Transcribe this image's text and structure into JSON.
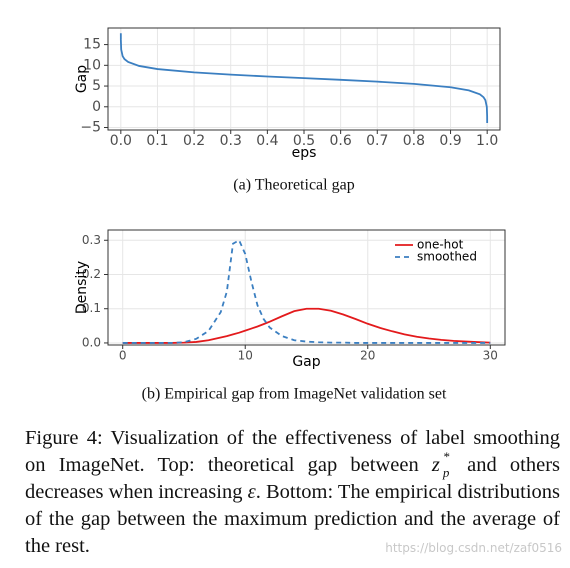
{
  "chart_data": [
    {
      "type": "line",
      "xlabel": "eps",
      "ylabel": "Gap",
      "caption": "(a) Theoretical gap",
      "x": [
        2e-05,
        0.0001,
        0.001,
        0.005,
        0.01,
        0.02,
        0.05,
        0.1,
        0.2,
        0.3,
        0.4,
        0.5,
        0.6,
        0.7,
        0.8,
        0.9,
        0.95,
        0.98,
        0.99,
        0.995,
        0.999,
        0.9999,
        0.99998
      ],
      "values": [
        17.73,
        16.12,
        13.81,
        12.2,
        11.5,
        10.8,
        9.85,
        9.1,
        8.29,
        7.75,
        7.31,
        6.91,
        6.5,
        6.06,
        5.52,
        4.71,
        3.96,
        3.01,
        2.31,
        1.61,
        0.0,
        -2.3,
        -3.91
      ],
      "color": "#3b7fc1",
      "xlim": [
        -0.035,
        1.035
      ],
      "xticks": [
        {
          "value": 0,
          "label": "0.0"
        },
        0.1,
        0.2,
        0.3,
        0.4,
        0.5,
        0.6,
        0.7,
        0.8,
        0.9,
        {
          "value": 1,
          "label": "1.0"
        }
      ],
      "ylim": [
        -5.6,
        19
      ],
      "yticks": [
        {
          "value": -5,
          "label": "−5"
        },
        0,
        5,
        10,
        15
      ],
      "grid": true
    },
    {
      "type": "line",
      "xlabel": "Gap",
      "ylabel": "Density",
      "caption": "(b) Empirical gap from ImageNet validation set",
      "x": [
        0,
        2,
        4,
        5,
        6,
        7,
        8,
        8.5,
        9,
        9.5,
        10,
        10.5,
        11,
        11.5,
        12,
        13,
        14,
        15,
        16,
        17,
        18,
        19,
        20,
        21,
        22,
        23,
        24,
        25,
        26,
        27,
        28,
        30
      ],
      "series": [
        {
          "name": "one-hot",
          "color": "#e31a1c",
          "dashed": false,
          "values": [
            0,
            0,
            0,
            0.001,
            0.003,
            0.008,
            0.016,
            0.02,
            0.025,
            0.03,
            0.036,
            0.042,
            0.048,
            0.055,
            0.062,
            0.078,
            0.093,
            0.1,
            0.1,
            0.094,
            0.083,
            0.07,
            0.056,
            0.044,
            0.034,
            0.025,
            0.018,
            0.013,
            0.009,
            0.006,
            0.004,
            0.001
          ]
        },
        {
          "name": "smoothed",
          "color": "#3b7fc1",
          "dashed": true,
          "values": [
            0,
            0,
            0,
            0.002,
            0.012,
            0.035,
            0.09,
            0.15,
            0.29,
            0.3,
            0.26,
            0.18,
            0.11,
            0.07,
            0.045,
            0.02,
            0.008,
            0.004,
            0.002,
            0.001,
            0.001,
            0,
            0,
            0,
            0,
            0,
            0,
            0,
            0,
            0,
            0,
            0
          ]
        }
      ],
      "xlim": [
        -1.2,
        31.2
      ],
      "xticks": [
        0,
        10,
        20,
        30
      ],
      "ylim": [
        -0.006,
        0.33
      ],
      "yticks": [
        {
          "value": 0,
          "label": "0.0"
        },
        0.1,
        0.2,
        0.3
      ],
      "grid": true,
      "legend": "top-right"
    }
  ],
  "figure_caption": [
    "Figure 4: Visualization of the effectiveness of label smoothing on ImageNet. Top: theoretical gap between ",
    "z",
    "p",
    "*",
    " and others decreases when increasing ",
    "ε",
    ".  Bottom: The empirical distributions of the gap between the maximum prediction and the average of the rest."
  ],
  "watermark": "https://blog.csdn.net/zaf0516"
}
